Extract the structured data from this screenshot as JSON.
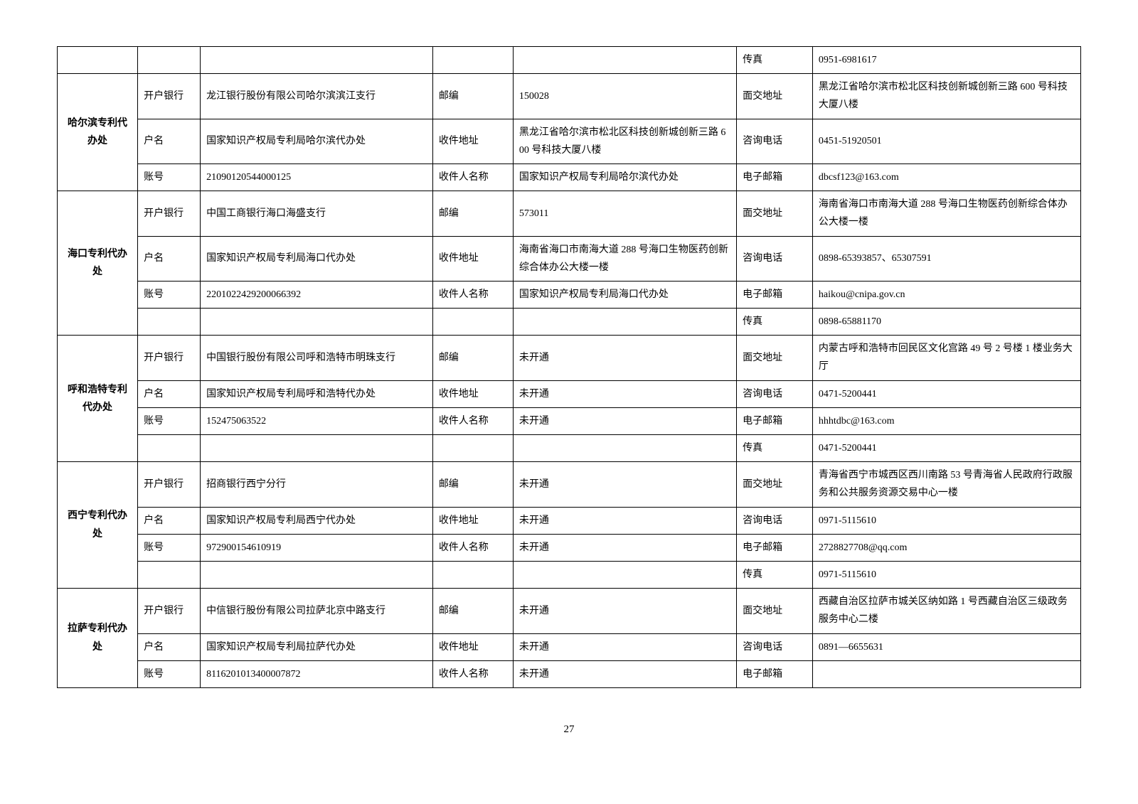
{
  "page_number": "27",
  "labels": {
    "bank": "开户银行",
    "acct_name": "户名",
    "acct_no": "账号",
    "postcode": "邮编",
    "mail_addr": "收件地址",
    "recipient": "收件人名称",
    "visit_addr": "面交地址",
    "phone": "咨询电话",
    "email": "电子邮箱",
    "fax": "传真"
  },
  "top_fax_value": "0951-6981617",
  "offices": [
    {
      "name": "哈尔滨专利代办处",
      "bank": "龙江银行股份有限公司哈尔滨滨江支行",
      "acct_name": "国家知识产权局专利局哈尔滨代办处",
      "acct_no": "21090120544000125",
      "postcode": "150028",
      "mail_addr": "黑龙江省哈尔滨市松北区科技创新城创新三路 600 号科技大厦八楼",
      "recipient": "国家知识产权局专利局哈尔滨代办处",
      "visit_addr": "黑龙江省哈尔滨市松北区科技创新城创新三路 600 号科技大厦八楼",
      "phone": "0451-51920501",
      "email": "dbcsf123@163.com",
      "fax": ""
    },
    {
      "name": "海口专利代办处",
      "bank": "中国工商银行海口海盛支行",
      "acct_name": "国家知识产权局专利局海口代办处",
      "acct_no": "2201022429200066392",
      "postcode": "573011",
      "mail_addr": "海南省海口市南海大道 288 号海口生物医药创新综合体办公大楼一楼",
      "recipient": "国家知识产权局专利局海口代办处",
      "visit_addr": "海南省海口市南海大道 288 号海口生物医药创新综合体办公大楼一楼",
      "phone": "0898-65393857、65307591",
      "email": "haikou@cnipa.gov.cn",
      "fax": "0898-65881170"
    },
    {
      "name": "呼和浩特专利代办处",
      "bank": "中国银行股份有限公司呼和浩特市明珠支行",
      "acct_name": "国家知识产权局专利局呼和浩特代办处",
      "acct_no": "152475063522",
      "postcode": "未开通",
      "mail_addr": "未开通",
      "recipient": "未开通",
      "visit_addr": "内蒙古呼和浩特市回民区文化宫路 49 号 2 号楼 1 楼业务大厅",
      "phone": "0471-5200441",
      "email": "hhhtdbc@163.com",
      "fax": "0471-5200441"
    },
    {
      "name": "西宁专利代办处",
      "bank": "招商银行西宁分行",
      "acct_name": "国家知识产权局专利局西宁代办处",
      "acct_no": "972900154610919",
      "postcode": "未开通",
      "mail_addr": "未开通",
      "recipient": "未开通",
      "visit_addr": "青海省西宁市城西区西川南路 53 号青海省人民政府行政服务和公共服务资源交易中心一楼",
      "phone": "0971-5115610",
      "email": "2728827708@qq.com",
      "fax": "0971-5115610"
    },
    {
      "name": "拉萨专利代办处",
      "bank": "中信银行股份有限公司拉萨北京中路支行",
      "acct_name": "国家知识产权局专利局拉萨代办处",
      "acct_no": "8116201013400007872",
      "postcode": "未开通",
      "mail_addr": "未开通",
      "recipient": "未开通",
      "visit_addr": "西藏自治区拉萨市城关区纳如路 1 号西藏自治区三级政务服务中心二楼",
      "phone": "0891—6655631",
      "email": "",
      "fax": ""
    }
  ]
}
